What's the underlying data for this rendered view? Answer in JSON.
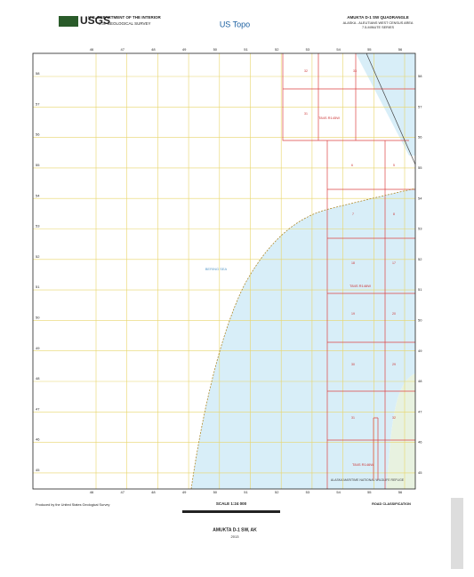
{
  "header": {
    "agency": "U.S. DEPARTMENT OF THE INTERIOR",
    "bureau": "U.S. GEOLOGICAL SURVEY",
    "logo": "USGS",
    "series_logo": "US Topo",
    "quad_title": "AMUKTA D-1 SW QUADRANGLE",
    "area": "ALASKA - ALEUTIANS WEST CENSUS AREA",
    "series": "7.5-MINUTE SERIES"
  },
  "map": {
    "grid_x_labels": [
      "46",
      "47",
      "48",
      "49",
      "50",
      "51",
      "52",
      "53",
      "54",
      "55",
      "56"
    ],
    "grid_y_labels": [
      "58",
      "57",
      "56",
      "55",
      "54",
      "53",
      "52",
      "51",
      "50",
      "49",
      "48",
      "47",
      "46",
      "45"
    ],
    "township_labels": [
      "T84S R145W",
      "T84S R146W",
      "T84S R146W"
    ],
    "water_label": "BERING SEA",
    "refuge_label": "ALASKA MARITIME NATIONAL WILDLIFE REFUGE",
    "section_numbers": [
      "32",
      "33",
      "31",
      "6",
      "5",
      "7",
      "8",
      "18",
      "17",
      "19",
      "20",
      "30",
      "29",
      "31",
      "32"
    ]
  },
  "footer": {
    "producer": "Produced by the United States Geological Survey",
    "scale": "SCALE 1:24 000",
    "road_classification": "ROAD CLASSIFICATION",
    "title": "AMUKTA D-1 SW, AK",
    "year": "2013"
  }
}
